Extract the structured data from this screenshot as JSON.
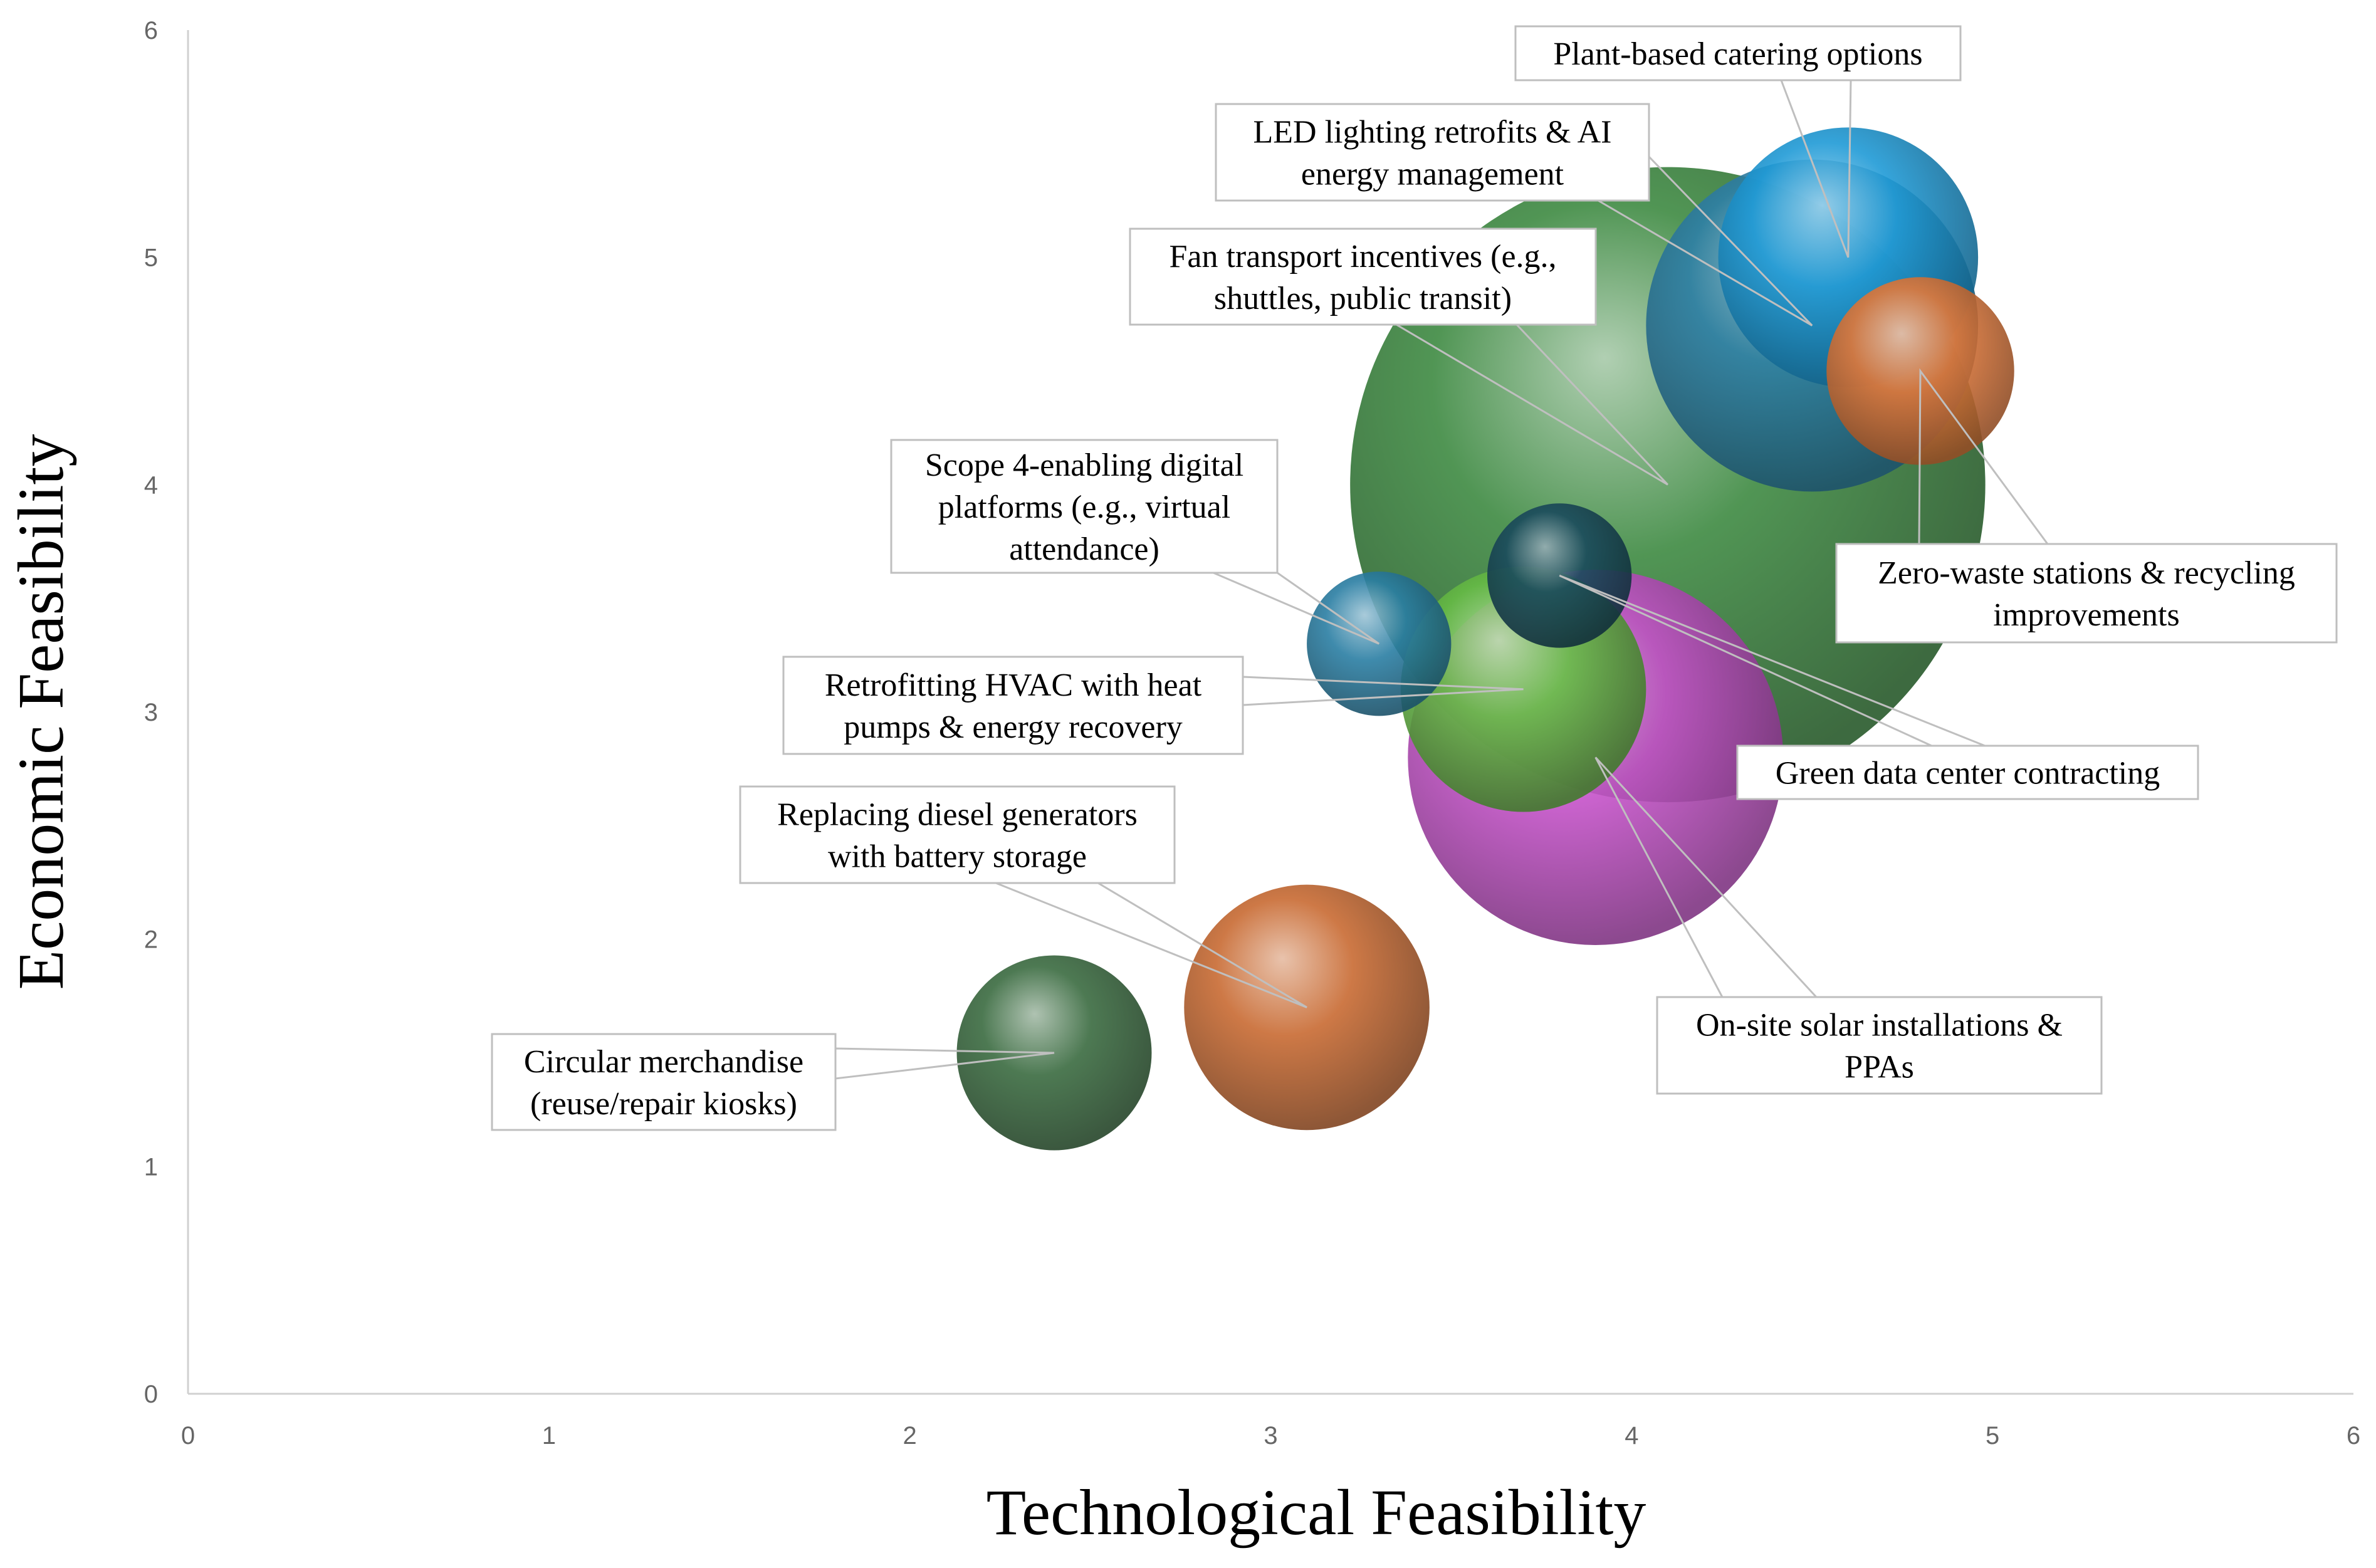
{
  "chart_data": {
    "type": "bubble",
    "xlabel": "Technological Feasibility",
    "ylabel": "Economic Feasibility",
    "xlim": [
      0,
      6
    ],
    "ylim": [
      0,
      6
    ],
    "xticks": [
      "0",
      "1",
      "2",
      "3",
      "4",
      "5",
      "6"
    ],
    "yticks": [
      "0",
      "1",
      "2",
      "3",
      "4",
      "5",
      "6"
    ],
    "grid": false,
    "legend": "none",
    "series": [
      {
        "name": "Plant-based catering options",
        "lines": [
          "Plant-based catering options"
        ],
        "x": 4.6,
        "y": 5.0,
        "size": 0.36,
        "color": "#1f9ad6"
      },
      {
        "name": "LED lighting retrofits & AI energy management",
        "lines": [
          "LED lighting retrofits & AI",
          "energy management"
        ],
        "x": 4.5,
        "y": 4.7,
        "size": 0.46,
        "color": "#2e7fa6"
      },
      {
        "name": "Fan transport incentives (e.g., shuttles, public transit)",
        "lines": [
          "Fan transport incentives (e.g.,",
          "shuttles, public transit)"
        ],
        "x": 4.1,
        "y": 4.0,
        "size": 0.88,
        "color": "#3e8a42"
      },
      {
        "name": "Zero-waste stations & recycling improvements",
        "lines": [
          "Zero-waste stations & recycling",
          "improvements"
        ],
        "x": 4.8,
        "y": 4.5,
        "size": 0.26,
        "color": "#e0783a"
      },
      {
        "name": "Scope 4-enabling digital platforms (e.g., virtual attendance)",
        "lines": [
          "Scope 4-enabling digital",
          "platforms (e.g., virtual",
          "attendance)"
        ],
        "x": 3.3,
        "y": 3.3,
        "size": 0.2,
        "color": "#2a7ea3"
      },
      {
        "name": "Green data center contracting",
        "lines": [
          "Green data center contracting"
        ],
        "x": 3.8,
        "y": 3.6,
        "size": 0.2,
        "color": "#1a4a5c"
      },
      {
        "name": "Retrofitting HVAC with heat pumps & energy recovery",
        "lines": [
          "Retrofitting HVAC with heat",
          "pumps & energy recovery"
        ],
        "x": 3.7,
        "y": 3.1,
        "size": 0.34,
        "color": "#66bb45"
      },
      {
        "name": "On-site solar installations & PPAs",
        "lines": [
          "On-site solar installations &",
          "PPAs"
        ],
        "x": 3.9,
        "y": 2.8,
        "size": 0.52,
        "color": "#c552c9"
      },
      {
        "name": "Replacing diesel generators with battery storage",
        "lines": [
          "Replacing diesel generators",
          "with battery storage"
        ],
        "x": 3.1,
        "y": 1.7,
        "size": 0.34,
        "color": "#c86a32"
      },
      {
        "name": "Circular merchandise (reuse/repair kiosks)",
        "lines": [
          "Circular merchandise",
          "(reuse/repair kiosks)"
        ],
        "x": 2.4,
        "y": 1.5,
        "size": 0.27,
        "color": "#3a6b40"
      }
    ]
  }
}
